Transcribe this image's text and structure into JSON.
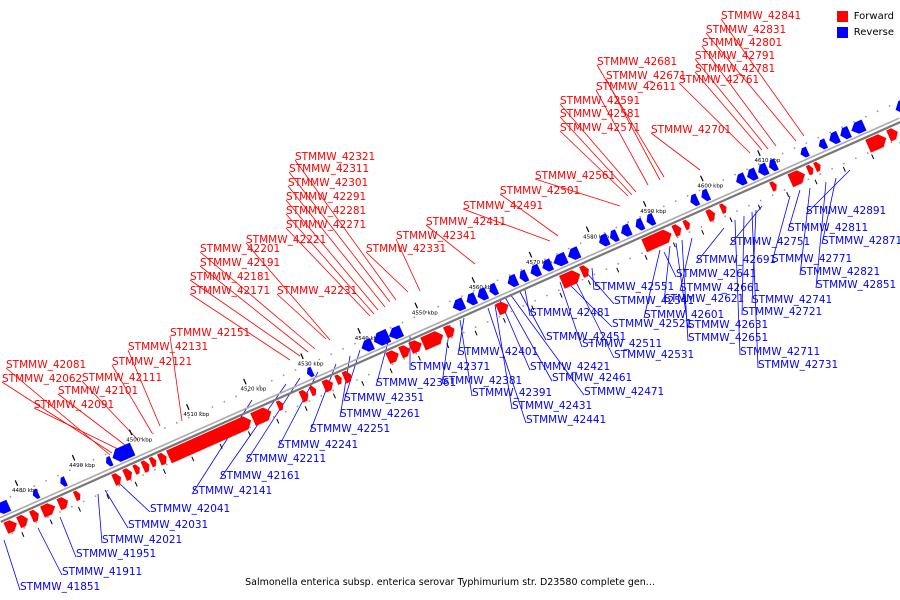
{
  "caption": "Salmonella enterica subsp. enterica serovar Typhimurium str. D23580 complete gen...",
  "legend": [
    {
      "label": "Forward",
      "color": "#ff0000"
    },
    {
      "label": "Reverse",
      "color": "#0000ff"
    }
  ],
  "colors": {
    "forward": "#ff0000",
    "reverse": "#0000ff",
    "backbone": "#777777"
  },
  "ticks": [
    "4480 kbp",
    "4490 kbp",
    "4500 kbp",
    "4510 kbp",
    "4520 kbp",
    "4530 kbp",
    "4540 kbp",
    "4550 kbp",
    "4560 kbp",
    "4570 kbp",
    "4580 kbp",
    "4590 kbp",
    "4600 kbp",
    "4610 kbp"
  ],
  "forward_labels": [
    "STMMW_42081",
    "STMMW_42062",
    "STMMW_42101",
    "STMMW_42091",
    "STMMW_42111",
    "STMMW_42121",
    "STMMW_42131",
    "STMMW_42151",
    "STMMW_42171",
    "STMMW_42181",
    "STMMW_42191",
    "STMMW_42201",
    "STMMW_42221",
    "STMMW_42231",
    "STMMW_42271",
    "STMMW_42281",
    "STMMW_42291",
    "STMMW_42301",
    "STMMW_42311",
    "STMMW_42321",
    "STMMW_42331",
    "STMMW_42341",
    "STMMW_42411",
    "STMMW_42491",
    "STMMW_42501",
    "STMMW_42561",
    "STMMW_42571",
    "STMMW_42581",
    "STMMW_42591",
    "STMMW_42611",
    "STMMW_42671",
    "STMMW_42681",
    "STMMW_42701",
    "STMMW_42761",
    "STMMW_42781",
    "STMMW_42791",
    "STMMW_42801",
    "STMMW_42831",
    "STMMW_42841"
  ],
  "reverse_labels": [
    "STMMW_41851",
    "STMMW_41911",
    "STMMW_41951",
    "STMMW_42021",
    "STMMW_42031",
    "STMMW_42041",
    "STMMW_42141",
    "STMMW_42161",
    "STMMW_42211",
    "STMMW_42241",
    "STMMW_42251",
    "STMMW_42261",
    "STMMW_42351",
    "STMMW_42361",
    "STMMW_42371",
    "STMMW_42381",
    "STMMW_42391",
    "STMMW_42401",
    "STMMW_42421",
    "STMMW_42431",
    "STMMW_42441",
    "STMMW_42451",
    "STMMW_42461",
    "STMMW_42471",
    "STMMW_42481",
    "STMMW_42511",
    "STMMW_42521",
    "STMMW_42531",
    "STMMW_42541",
    "STMMW_42551",
    "STMMW_42601",
    "STMMW_42621",
    "STMMW_42631",
    "STMMW_42641",
    "STMMW_42651",
    "STMMW_42661",
    "STMMW_42691",
    "STMMW_42711",
    "STMMW_42721",
    "STMMW_42731",
    "STMMW_42741",
    "STMMW_42751",
    "STMMW_42771",
    "STMMW_42811",
    "STMMW_42821",
    "STMMW_42851",
    "STMMW_42871",
    "STMMW_42891"
  ]
}
